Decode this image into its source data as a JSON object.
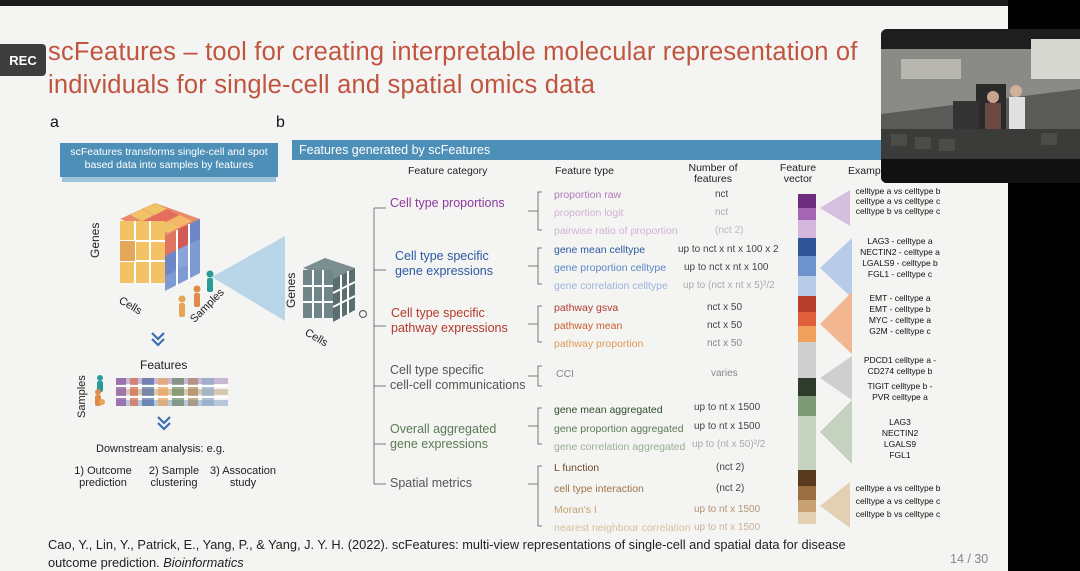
{
  "rec_badge": "REC",
  "slide": {
    "title_line1": "scFeatures – tool for creating interpretable molecular representation of",
    "title_line2": "individuals for single-cell and spatial omics data",
    "panel_a_letter": "a",
    "panel_b_letter": "b",
    "panel_a_banner_line1": "scFeatures transforms single-cell and spot",
    "panel_a_banner_line2": "based data into samples by features",
    "panel_b_banner": "Features generated by scFeatures",
    "cube_labels": {
      "genes": "Genes",
      "cells": "Cells",
      "samples": "Samples"
    },
    "cube_b_labels": {
      "genes": "Genes",
      "cells": "Cells"
    },
    "matrix_labels": {
      "features": "Features",
      "samples": "Samples"
    },
    "downstream_title": "Downstream analysis: e.g.",
    "downstream_items": [
      {
        "line1": "1) Outcome",
        "line2": "prediction"
      },
      {
        "line1": "2) Sample",
        "line2": "clustering"
      },
      {
        "line1": "3) Assocation",
        "line2": "study"
      }
    ],
    "headers": {
      "category": "Feature category",
      "type": "Feature type",
      "number_line1": "Number of",
      "number_line2": "features",
      "vector_line1": "Feature",
      "vector_line2": "vector",
      "example": "Examp"
    },
    "categories": [
      {
        "line1": "Cell type proportions",
        "line2": ""
      },
      {
        "line1": "Cell type specific",
        "line2": "gene expressions"
      },
      {
        "line1": "Cell type specific",
        "line2": "pathway expressions"
      },
      {
        "line1": "Cell type specific",
        "line2": "cell-cell communications"
      },
      {
        "line1": "Overall aggregated",
        "line2": "gene expressions"
      },
      {
        "line1": "Spatial metrics",
        "line2": ""
      }
    ],
    "feature_types": [
      {
        "label": "proportion raw",
        "count": "nct"
      },
      {
        "label": "proportion logit",
        "count": "nct"
      },
      {
        "label": "pairwise ratio of proportion",
        "count": "(nct 2)"
      },
      {
        "label": "gene mean celltype",
        "count": "up to nct x nt x 100 x 2"
      },
      {
        "label": "gene proportion celltype",
        "count": "up to nct x nt x 100"
      },
      {
        "label": "gene correlation celltype",
        "count": "up to (nct x nt x 5)²/2"
      },
      {
        "label": "pathway gsva",
        "count": "nct x 50"
      },
      {
        "label": "pathway mean",
        "count": "nct x 50"
      },
      {
        "label": "pathway proportion",
        "count": "nct x 50"
      },
      {
        "label": "CCI",
        "count": "varies"
      },
      {
        "label": "gene mean aggregated",
        "count": "up to nt x 1500"
      },
      {
        "label": "gene proportion aggregated",
        "count": "up to nt x 1500"
      },
      {
        "label": "gene correlation aggregated",
        "count": "up to (nt x 50)²/2"
      },
      {
        "label": "L function",
        "count": "(nct 2)"
      },
      {
        "label": "cell type interaction",
        "count": "(nct 2)"
      },
      {
        "label": "Moran's I",
        "count": "up to nt x 1500"
      },
      {
        "label": "nearest neighbour correlation",
        "count": "up to nt x 1500"
      }
    ],
    "examples": {
      "group1": [
        "celltype a vs celltype b",
        "celltype a vs celltype c",
        "celltype b vs celltype c"
      ],
      "group2": [
        "LAG3 - celltype a",
        "NECTIN2 - celltype a",
        "LGALS9 - celltype b",
        "FGL1 - celltype c"
      ],
      "group3": [
        "EMT - celltype a",
        "EMT - celltype b",
        "MYC - celltype a",
        "G2M - celltype c"
      ],
      "group4": [
        "PDCD1 celltype a -",
        "CD274 celltype b",
        "TIGIT celltype b -",
        "PVR celltype a"
      ],
      "group5": [
        "LAG3",
        "NECTIN2",
        "LGALS9",
        "FGL1"
      ],
      "group6": [
        "celltype a vs celltype b",
        "celltype a vs celltype c",
        "celltype b vs celltype c"
      ]
    },
    "citation_line1": "Cao, Y., Lin, Y., Patrick, E., Yang, P., & Yang, J. Y. H. (2022). scFeatures: multi-view representations of single-cell and spatial data for disease",
    "citation_line2_prefix": "outcome prediction. ",
    "citation_journal": "Bioinformatics",
    "page_number": "14 / 30"
  },
  "colors": {
    "title": "#c0553f",
    "banner": "#4d8fb7",
    "proportions": "#8e3a9e",
    "gene_expr": "#2c5aa0",
    "pathway": "#cc5d2d",
    "cci": "#555555",
    "aggregated": "#5b7a55",
    "spatial": "#a07448"
  },
  "video_overlay": {
    "kind": "webcam-video-feed"
  }
}
